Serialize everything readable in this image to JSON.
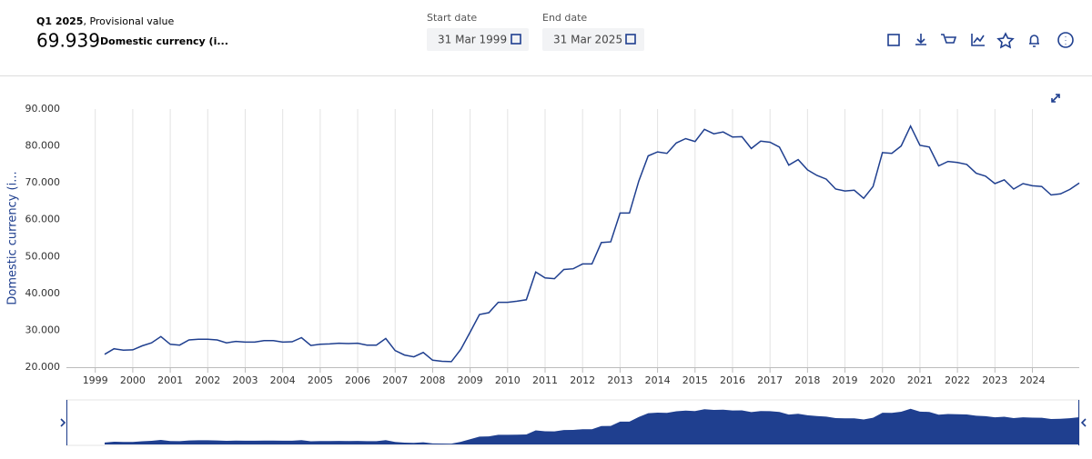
{
  "header": {
    "period": "Q1 2025",
    "status": ", Provisional value",
    "value": 69.939,
    "unit": "Domestic currency (i...",
    "start_label": "Start date",
    "start_date": "31 Mar 1999",
    "end_label": "End date",
    "end_date": "31 Mar 2025"
  },
  "chart_data": {
    "type": "line",
    "y_label": "Domestic currency (i...",
    "color": "#1f3f8f",
    "grid": true,
    "x": [
      1999.25,
      1999.5,
      1999.75,
      2000,
      2000.25,
      2000.5,
      2000.75,
      2001,
      2001.25,
      2001.5,
      2001.75,
      2002,
      2002.25,
      2002.5,
      2002.75,
      2003,
      2003.25,
      2003.5,
      2003.75,
      2004,
      2004.25,
      2004.5,
      2004.75,
      2005,
      2005.25,
      2005.5,
      2005.75,
      2006,
      2006.25,
      2006.5,
      2006.75,
      2007,
      2007.25,
      2007.5,
      2007.75,
      2008,
      2008.25,
      2008.5,
      2008.75,
      2009,
      2009.25,
      2009.5,
      2009.75,
      2010,
      2010.25,
      2010.5,
      2010.75,
      2011,
      2011.25,
      2011.5,
      2011.75,
      2012,
      2012.25,
      2012.5,
      2012.75,
      2013,
      2013.25,
      2013.5,
      2013.75,
      2014,
      2014.25,
      2014.5,
      2014.75,
      2015,
      2015.25,
      2015.5,
      2015.75,
      2016,
      2016.25,
      2016.5,
      2016.75,
      2017,
      2017.25,
      2017.5,
      2017.75,
      2018,
      2018.25,
      2018.5,
      2018.75,
      2019,
      2019.25,
      2019.5,
      2019.75,
      2020,
      2020.25,
      2020.5,
      2020.75,
      2021,
      2021.25,
      2021.5,
      2021.75,
      2022,
      2022.25,
      2022.5,
      2022.75,
      2023,
      2023.25,
      2023.5,
      2023.75,
      2024,
      2024.25,
      2024.5,
      2024.75,
      2025,
      2025.25
    ],
    "values": [
      23.5,
      25.0,
      24.6,
      24.7,
      25.8,
      26.6,
      28.3,
      26.2,
      26.0,
      27.4,
      27.6,
      27.6,
      27.4,
      26.6,
      27.0,
      26.8,
      26.8,
      27.2,
      27.2,
      26.8,
      26.9,
      28.0,
      25.9,
      26.2,
      26.3,
      26.5,
      26.4,
      26.5,
      26.0,
      26.0,
      27.8,
      24.5,
      23.3,
      22.8,
      24.0,
      21.9,
      21.6,
      21.5,
      24.8,
      29.5,
      34.3,
      34.8,
      37.6,
      37.6,
      37.9,
      38.3,
      45.8,
      44.2,
      44.0,
      46.5,
      46.7,
      48.0,
      48.0,
      53.8,
      54.0,
      61.8,
      61.8,
      70.5,
      77.3,
      78.4,
      78.0,
      80.8,
      82.0,
      81.2,
      84.5,
      83.3,
      83.8,
      82.4,
      82.5,
      79.3,
      81.3,
      81.0,
      79.7,
      74.8,
      76.3,
      73.5,
      72.0,
      71.0,
      68.3,
      67.8,
      68.0,
      65.8,
      69.0,
      78.2,
      78.0,
      80.0,
      85.4,
      80.2,
      79.7,
      74.6,
      75.8,
      75.5,
      75.0,
      72.6,
      71.8,
      69.8,
      70.8,
      68.3,
      69.8,
      69.2,
      69.0,
      66.7,
      67.0,
      68.2,
      69.939
    ],
    "xlim": [
      1999.25,
      2025.25
    ],
    "xticks": [
      1999,
      2000,
      2001,
      2002,
      2003,
      2004,
      2005,
      2006,
      2007,
      2008,
      2009,
      2010,
      2011,
      2012,
      2013,
      2014,
      2015,
      2016,
      2017,
      2018,
      2019,
      2020,
      2021,
      2022,
      2023,
      2024
    ],
    "ylim": [
      20,
      90
    ],
    "yticks": [
      {
        "value": 20,
        "label": "20.000"
      },
      {
        "value": 30,
        "label": "30.000"
      },
      {
        "value": 40,
        "label": "40.000"
      },
      {
        "value": 50,
        "label": "50.000"
      },
      {
        "value": 60,
        "label": "60.000"
      },
      {
        "value": 70,
        "label": "70.000"
      },
      {
        "value": 80,
        "label": "80.000"
      },
      {
        "value": 90,
        "label": "90.000"
      }
    ]
  }
}
